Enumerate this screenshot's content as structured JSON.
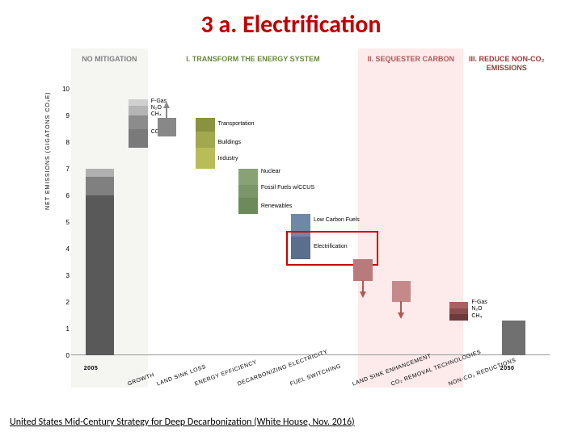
{
  "title": "3 a. Electrification",
  "footer": "United States Mid-Century Strategy for Deep Decarbonization (White House, Nov. 2016)",
  "title_color": "#c00000",
  "y_axis": {
    "label": "NET EMISSIONS (GIGATONS CO₂E)",
    "min": 0,
    "max": 10,
    "ticks": [
      0,
      1,
      2,
      3,
      4,
      5,
      6,
      7,
      8,
      9,
      10
    ],
    "tick_fontsize": 8
  },
  "panels": [
    {
      "id": "p0",
      "label": "NO MITIGATION",
      "bg": "#f5f5f2",
      "fg": "#808080",
      "left_pct": 0,
      "width_pct": 16
    },
    {
      "id": "p1",
      "label": "I. TRANSFORM THE ENERGY SYSTEM",
      "bg": "#ffffff",
      "fg": "#6a8a3a",
      "left_pct": 16,
      "width_pct": 44
    },
    {
      "id": "p2",
      "label": "II. SEQUESTER CARBON",
      "bg": "#fdeaea",
      "fg": "#b05858",
      "left_pct": 60,
      "width_pct": 22
    },
    {
      "id": "p3",
      "label": "III. REDUCE NON-CO₂ EMISSIONS",
      "bg": "#ffffff",
      "fg": "#9a3a3a",
      "left_pct": 82,
      "width_pct": 18
    }
  ],
  "bars": [
    {
      "id": "b2005",
      "x_pct": 3,
      "w_pct": 6,
      "label": "2005",
      "rot": 0,
      "segments": [
        {
          "h": 6.0,
          "c": "#595959"
        },
        {
          "h": 0.7,
          "c": "#808080"
        },
        {
          "h": 0.3,
          "c": "#b0b0b0"
        }
      ]
    },
    {
      "id": "growth",
      "x_pct": 12,
      "w_pct": 4,
      "label": "GROWTH",
      "segments": [
        {
          "h": 7.8,
          "c": "transparent"
        },
        {
          "h": 0.7,
          "c": "#7a7a7a"
        },
        {
          "h": 0.5,
          "c": "#8c8c8c"
        },
        {
          "h": 0.35,
          "c": "#b5b5b5"
        },
        {
          "h": 0.25,
          "c": "#d0d0d0"
        }
      ],
      "side_labels": [
        {
          "txt": "F-Gas",
          "y": 9.55
        },
        {
          "txt": "N₂O",
          "y": 9.3
        },
        {
          "txt": "CH₄",
          "y": 9.05
        },
        {
          "txt": "CO₂",
          "y": 8.4
        }
      ]
    },
    {
      "id": "landsink",
      "x_pct": 18,
      "w_pct": 4,
      "label": "LAND SINK LOSS",
      "segments": [
        {
          "h": 8.2,
          "c": "transparent"
        },
        {
          "h": 0.7,
          "c": "#888"
        }
      ],
      "arrow_up": true
    },
    {
      "id": "eff",
      "x_pct": 26,
      "w_pct": 4,
      "label": "ENERGY EFFICIENCY",
      "segments": [
        {
          "h": 7.0,
          "c": "transparent"
        },
        {
          "h": 0.8,
          "c": "#b8bd5a"
        },
        {
          "h": 0.6,
          "c": "#a1a84d"
        },
        {
          "h": 0.5,
          "c": "#8a9240"
        }
      ],
      "side_labels": [
        {
          "txt": "Transportation",
          "y": 8.7
        },
        {
          "txt": "Buildings",
          "y": 8.0
        },
        {
          "txt": "Industry",
          "y": 7.4
        }
      ]
    },
    {
      "id": "decarb",
      "x_pct": 35,
      "w_pct": 4,
      "label": "DECARBONIZING ELECTRICITY",
      "segments": [
        {
          "h": 5.3,
          "c": "transparent"
        },
        {
          "h": 0.6,
          "c": "#6d8a5a"
        },
        {
          "h": 0.5,
          "c": "#7a9668"
        },
        {
          "h": 0.6,
          "c": "#88a276"
        }
      ],
      "side_labels": [
        {
          "txt": "Nuclear",
          "y": 6.9
        },
        {
          "txt": "Fossil Fuels w/CCUS",
          "y": 6.3
        },
        {
          "txt": "Renewables",
          "y": 5.6
        }
      ]
    },
    {
      "id": "fuel",
      "x_pct": 46,
      "w_pct": 4,
      "label": "FUEL SWITCHING",
      "segments": [
        {
          "h": 3.6,
          "c": "transparent"
        },
        {
          "h": 0.85,
          "c": "#5a6f8c"
        },
        {
          "h": 0.85,
          "c": "#7088a8"
        }
      ],
      "side_labels": [
        {
          "txt": "Low Carbon Fuels",
          "y": 5.1
        },
        {
          "txt": "Electrification",
          "y": 4.1
        }
      ],
      "highlight": {
        "y_top": 4.55,
        "y_bot": 3.5
      }
    },
    {
      "id": "landenh",
      "x_pct": 59,
      "w_pct": 4,
      "label": "LAND SINK ENHANCEMENT",
      "segments": [
        {
          "h": 2.8,
          "c": "transparent"
        },
        {
          "h": 0.8,
          "c": "#b87a7a"
        }
      ],
      "arrow_down": true
    },
    {
      "id": "co2rem",
      "x_pct": 67,
      "w_pct": 4,
      "label": "CO₂ REMOVAL TECHNOLOGIES",
      "segments": [
        {
          "h": 2.0,
          "c": "transparent"
        },
        {
          "h": 0.8,
          "c": "#c48a8a"
        }
      ],
      "arrow_down": true
    },
    {
      "id": "nonco2",
      "x_pct": 79,
      "w_pct": 4,
      "label": "NON-CO₂ REDUCTIONS",
      "segments": [
        {
          "h": 1.3,
          "c": "transparent"
        },
        {
          "h": 0.25,
          "c": "#6d3a3a"
        },
        {
          "h": 0.2,
          "c": "#8a4d4d"
        },
        {
          "h": 0.25,
          "c": "#a86060"
        }
      ],
      "side_labels": [
        {
          "txt": "F-Gas",
          "y": 2.0
        },
        {
          "txt": "N₂O",
          "y": 1.75
        },
        {
          "txt": "CH₄",
          "y": 1.5
        }
      ]
    },
    {
      "id": "b2050",
      "x_pct": 90,
      "w_pct": 5,
      "label": "2050",
      "rot": 0,
      "segments": [
        {
          "h": 1.3,
          "c": "#707070"
        }
      ]
    }
  ]
}
